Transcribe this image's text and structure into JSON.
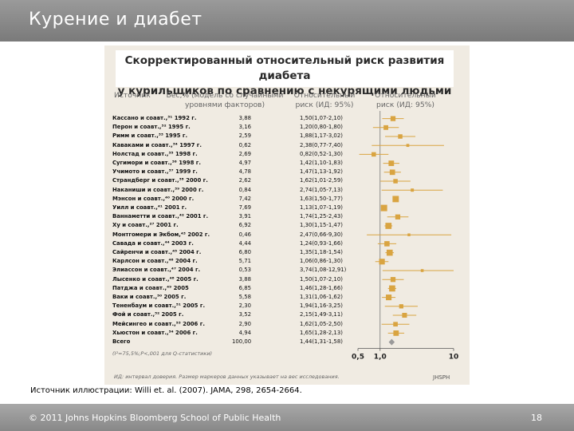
{
  "slide": {
    "title": "Курение и диабет",
    "source_citation": "Источник иллюстрации: Willi et. al. (2007). JAMA, 298, 2654-2664.",
    "copyright": "© 2011 Johns Hopkins Bloomberg School of Public Health",
    "page_number": "18"
  },
  "figure": {
    "title_line1": "Скорректированный относительный риск развития диабета",
    "title_line2": "у курильщиков по сравнению с некурящими людьми",
    "col_source": "Источник",
    "col_weight_l1": "Вес,% (модель со случайными",
    "col_weight_l2": "уровнями факторов)",
    "col_rr1_l1": "Относительный",
    "col_rr1_l2": "риск (ИД: 95%)",
    "col_rr2_l1": "Относительный",
    "col_rr2_l2": "риск (ИД: 95%)",
    "heterogeneity": "(I²=75,5%;P<,001 для Q-статистики)",
    "legend_note": "ИД: интервал доверия. Размер маркеров данных указывает на вес исследования.",
    "logo_text": "JHSPH",
    "accent_color": "#d9a441",
    "total_color": "#9a9a9a"
  },
  "chart_data": {
    "type": "forest",
    "x_ticks": [
      "0,5",
      "1,0",
      "10"
    ],
    "x_scale": "log",
    "xlim": [
      0.5,
      10
    ],
    "rows": [
      {
        "source": "Кассано и соавт.,³¹ 1992 г.",
        "weight": "3,88",
        "ci": "1,50(1,07-2,10)",
        "rr": 1.5,
        "lo": 1.07,
        "hi": 2.1
      },
      {
        "source": "Перон и соавт.,³² 1995 г.",
        "weight": "3,16",
        "ci": "1,20(0,80-1,80)",
        "rr": 1.2,
        "lo": 0.8,
        "hi": 1.8
      },
      {
        "source": "Римм и соавт.,³³ 1995 г.",
        "weight": "2,59",
        "ci": "1,88(1,17-3,02)",
        "rr": 1.88,
        "lo": 1.17,
        "hi": 3.02
      },
      {
        "source": "Каваками и соавт.,³⁴ 1997 г.",
        "weight": "0,62",
        "ci": "2,38(0,77-7,40)",
        "rr": 2.38,
        "lo": 0.77,
        "hi": 7.4
      },
      {
        "source": "Нолстад и соавт.,³⁵ 1998 г.",
        "weight": "2,69",
        "ci": "0,82(0,52-1,30)",
        "rr": 0.82,
        "lo": 0.52,
        "hi": 1.3
      },
      {
        "source": "Сугимори и соавт.,³⁶ 1998 г.",
        "weight": "4,97",
        "ci": "1,42(1,10-1,83)",
        "rr": 1.42,
        "lo": 1.1,
        "hi": 1.83
      },
      {
        "source": "Учимото и соавт.,³⁷ 1999 г.",
        "weight": "4,78",
        "ci": "1,47(1,13-1,92)",
        "rr": 1.47,
        "lo": 1.13,
        "hi": 1.92
      },
      {
        "source": "Страндберг и соавт.,³⁸ 2000 г.",
        "weight": "2,62",
        "ci": "1,62(1,01-2,59)",
        "rr": 1.62,
        "lo": 1.01,
        "hi": 2.59
      },
      {
        "source": "Наканиши и соавт.,³⁹ 2000 г.",
        "weight": "0,84",
        "ci": "2,74(1,05-7,13)",
        "rr": 2.74,
        "lo": 1.05,
        "hi": 7.13
      },
      {
        "source": "Мэнсон и соавт.,⁴⁰ 2000 г.",
        "weight": "7,42",
        "ci": "1,63(1,50-1,77)",
        "rr": 1.63,
        "lo": 1.5,
        "hi": 1.77
      },
      {
        "source": "Уилл и соавт.,⁴¹ 2001 г.",
        "weight": "7,69",
        "ci": "1,13(1,07-1,19)",
        "rr": 1.13,
        "lo": 1.07,
        "hi": 1.19
      },
      {
        "source": "Ваннаметти и соавт.,⁴² 2001 г.",
        "weight": "3,91",
        "ci": "1,74(1,25-2,43)",
        "rr": 1.74,
        "lo": 1.25,
        "hi": 2.43
      },
      {
        "source": "Ху и соавт.,²⁷ 2001 г.",
        "weight": "6,92",
        "ci": "1,30(1,15-1,47)",
        "rr": 1.3,
        "lo": 1.15,
        "hi": 1.47
      },
      {
        "source": "Монтгомери и Экбом,⁴³ 2002 г.",
        "weight": "0,46",
        "ci": "2,47(0,66-9,30)",
        "rr": 2.47,
        "lo": 0.66,
        "hi": 9.3
      },
      {
        "source": "Савада и соавт.,⁴⁴ 2003 г.",
        "weight": "4,44",
        "ci": "1,24(0,93-1,66)",
        "rr": 1.24,
        "lo": 0.93,
        "hi": 1.66
      },
      {
        "source": "Сайренчи и соавт.,⁴⁵ 2004 г.",
        "weight": "6,80",
        "ci": "1,35(1,18-1,54)",
        "rr": 1.35,
        "lo": 1.18,
        "hi": 1.54
      },
      {
        "source": "Карлсон и соавт.,⁴⁶ 2004 г.",
        "weight": "5,71",
        "ci": "1,06(0,86-1,30)",
        "rr": 1.06,
        "lo": 0.86,
        "hi": 1.3
      },
      {
        "source": "Элиассон и соавт.,⁴⁷ 2004 г.",
        "weight": "0,53",
        "ci": "3,74(1,08-12,91)",
        "rr": 3.74,
        "lo": 1.08,
        "hi": 12.91
      },
      {
        "source": "Лысенко и соавт.,⁴⁸ 2005 г.",
        "weight": "3,88",
        "ci": "1,50(1,07-2,10)",
        "rr": 1.5,
        "lo": 1.07,
        "hi": 2.1
      },
      {
        "source": "Патджа и соавт.,⁴⁹ 2005",
        "weight": "6,85",
        "ci": "1,46(1,28-1,66)",
        "rr": 1.46,
        "lo": 1.28,
        "hi": 1.66
      },
      {
        "source": "Ваки и соавт.,⁵⁰ 2005 г.",
        "weight": "5,58",
        "ci": "1,31(1,06-1,62)",
        "rr": 1.31,
        "lo": 1.06,
        "hi": 1.62
      },
      {
        "source": "Тененбаум и соавт.,⁵¹ 2005 г.",
        "weight": "2,30",
        "ci": "1,94(1,16-3,25)",
        "rr": 1.94,
        "lo": 1.16,
        "hi": 3.25
      },
      {
        "source": "Фой и соавт.,⁵² 2005 г.",
        "weight": "3,52",
        "ci": "2,15(1,49-3,11)",
        "rr": 2.15,
        "lo": 1.49,
        "hi": 3.11
      },
      {
        "source": "Мейсингео и соавт.,⁵³ 2006 г.",
        "weight": "2,90",
        "ci": "1,62(1,05-2,50)",
        "rr": 1.62,
        "lo": 1.05,
        "hi": 2.5
      },
      {
        "source": "Хьюстон и соавт.,⁵⁴ 2006 г.",
        "weight": "4,94",
        "ci": "1,65(1,28-2,13)",
        "rr": 1.65,
        "lo": 1.28,
        "hi": 2.13
      },
      {
        "source": "Всего",
        "weight": "100,00",
        "ci": "1,44(1,31-1,58)",
        "rr": 1.44,
        "lo": 1.31,
        "hi": 1.58,
        "total": true
      }
    ]
  }
}
